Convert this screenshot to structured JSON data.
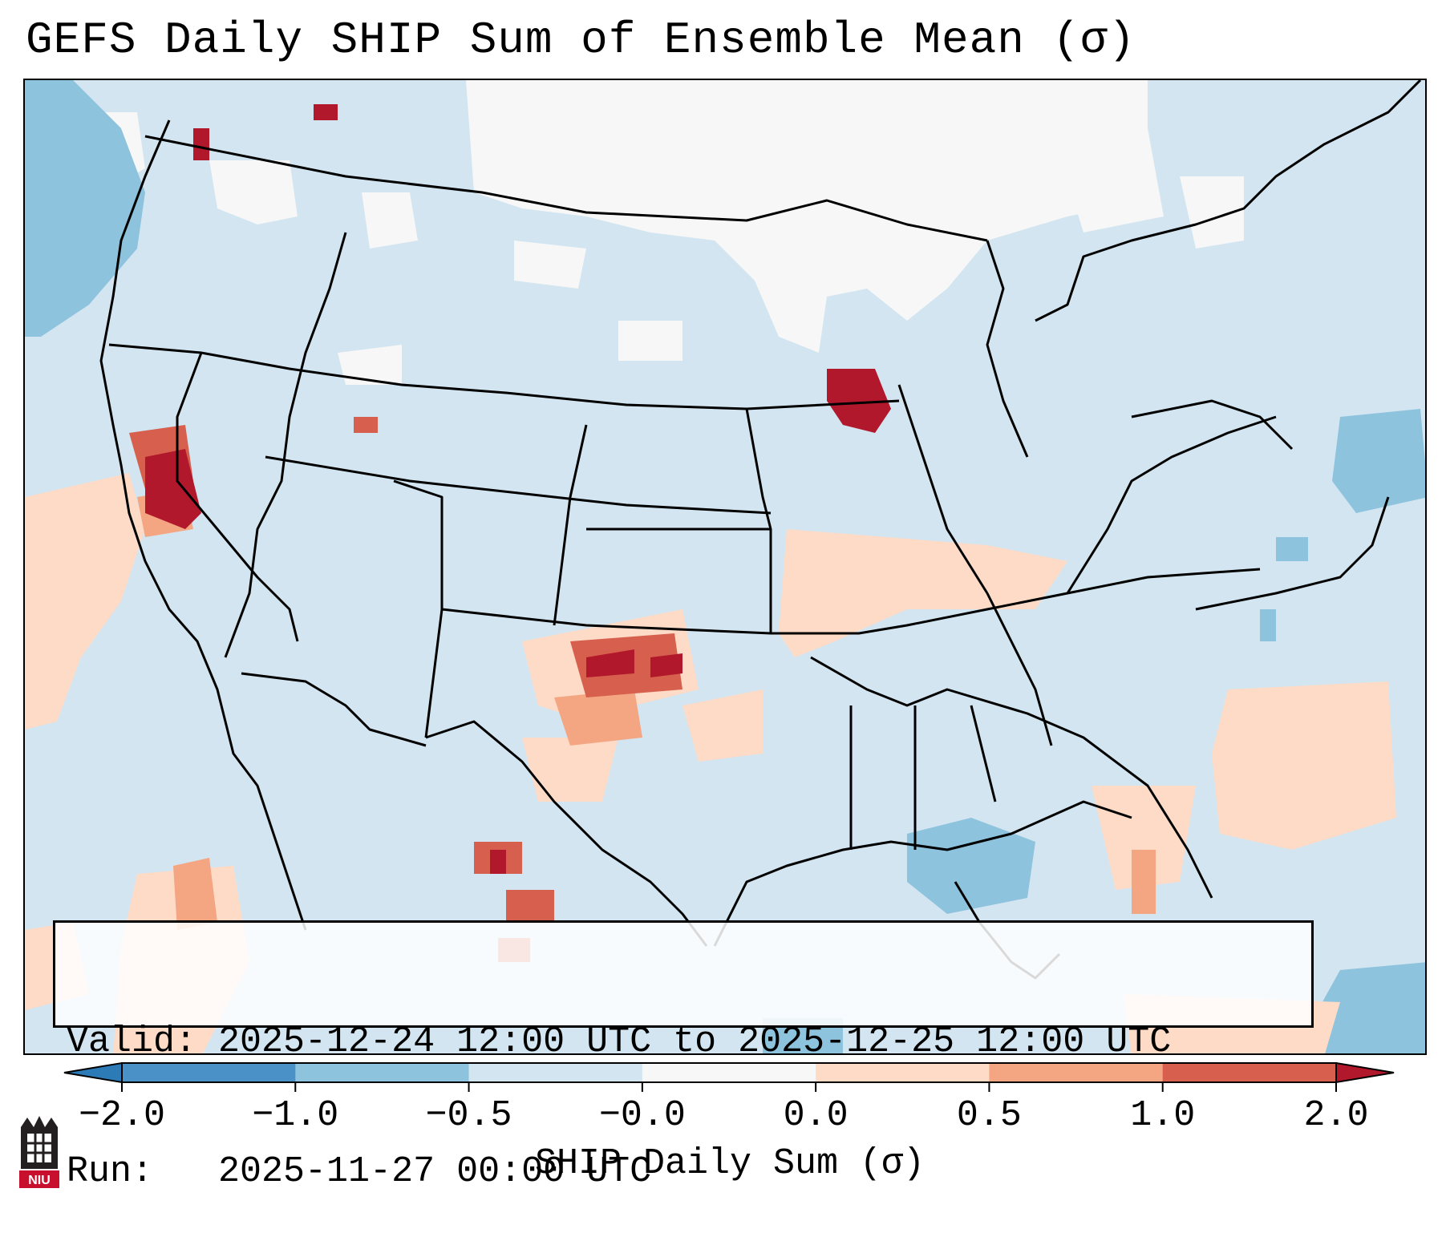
{
  "title": "GEFS Daily SHIP Sum of Ensemble Mean (σ)",
  "info": {
    "valid_line": "Valid: 2025-12-24 12:00 UTC to 2025-12-25 12:00 UTC",
    "run_line": "Run:   2025-11-27 00:00 UTC"
  },
  "colorbar": {
    "label": "SHIP Daily Sum (σ)",
    "tick_labels": [
      "−2.0",
      "−1.0",
      "−0.5",
      "−0.0",
      "0.0",
      "0.5",
      "1.0",
      "2.0"
    ],
    "colors": [
      "#2c7bb6",
      "#4a91c7",
      "#8ec3de",
      "#d2e5f0",
      "#f7f7f7",
      "#fddbc7",
      "#f4a582",
      "#d6604d",
      "#b2182b"
    ]
  },
  "map": {
    "background_color": "#d2e5f0",
    "features": [
      "state-borders",
      "coastlines",
      "country-borders"
    ]
  },
  "logo": {
    "text": "NIU"
  }
}
